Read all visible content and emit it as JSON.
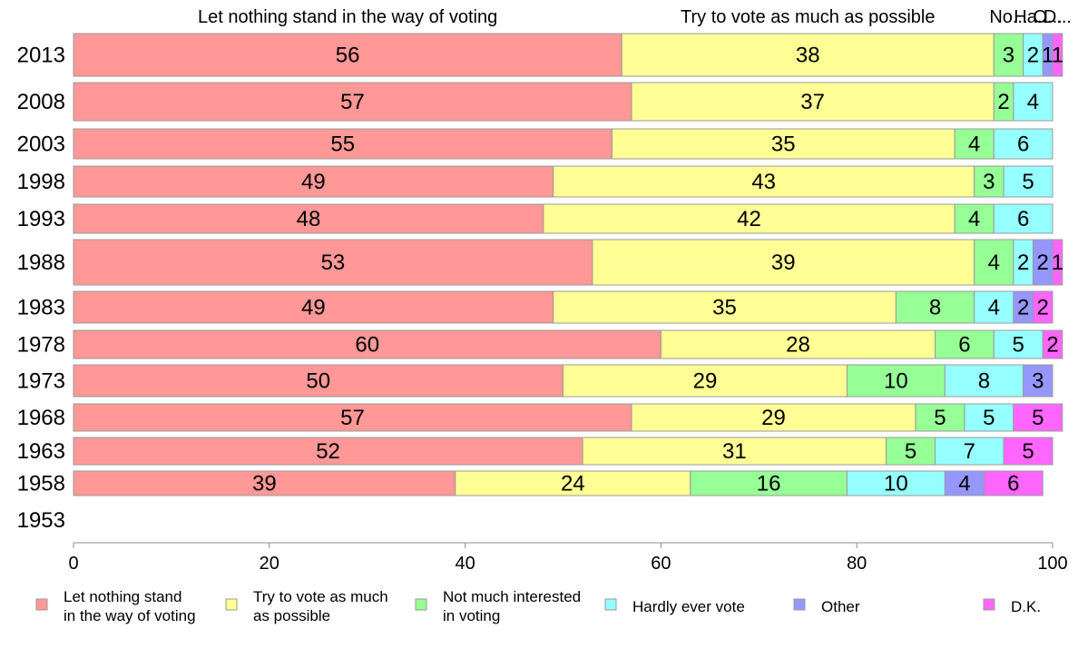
{
  "chart_data": {
    "type": "bar",
    "orientation": "horizontal",
    "stacked": true,
    "categories": [
      "2013",
      "2008",
      "2003",
      "1998",
      "1993",
      "1988",
      "1983",
      "1978",
      "1973",
      "1968",
      "1963",
      "1958",
      "1953"
    ],
    "series": [
      {
        "name": "Let nothing stand in the way of voting",
        "legend": [
          "Let nothing stand",
          "in the way of voting"
        ],
        "color": "#ff9896",
        "values": [
          56,
          57,
          55,
          49,
          48,
          53,
          49,
          60,
          50,
          57,
          52,
          39,
          null
        ]
      },
      {
        "name": "Try to vote as much as possible",
        "legend": [
          "Try to vote as much",
          "as possible"
        ],
        "color": "#ffff96",
        "values": [
          38,
          37,
          35,
          43,
          42,
          39,
          35,
          28,
          29,
          29,
          31,
          24,
          null
        ]
      },
      {
        "name": "Not much interested in voting",
        "legend": [
          "Not much interested",
          "in voting"
        ],
        "color": "#96ff96",
        "values": [
          3,
          2,
          4,
          3,
          4,
          4,
          8,
          6,
          10,
          5,
          5,
          16,
          null
        ]
      },
      {
        "name": "Hardly ever vote",
        "legend": [
          "Hardly ever vote"
        ],
        "color": "#96ffff",
        "values": [
          2,
          4,
          6,
          5,
          6,
          2,
          4,
          5,
          8,
          5,
          7,
          10,
          null
        ]
      },
      {
        "name": "Other",
        "legend": [
          "Other"
        ],
        "color": "#9696ff",
        "values": [
          1,
          0,
          0,
          0,
          0,
          2,
          2,
          0,
          3,
          0,
          0,
          4,
          null
        ]
      },
      {
        "name": "D.K.",
        "legend": [
          "D.K."
        ],
        "color": "#ff66ff",
        "values": [
          1,
          0,
          0,
          0,
          0,
          1,
          2,
          2,
          0,
          5,
          5,
          6,
          null
        ]
      }
    ],
    "top_labels": [
      "Let nothing stand in the way of voting",
      "Try to vote as much as possible",
      "No...",
      "Ha...",
      "O...",
      "D..."
    ],
    "xlim": [
      0,
      100
    ],
    "xticks": [
      0,
      20,
      40,
      60,
      80,
      100
    ],
    "xlabel": "",
    "ylabel": "",
    "title": "",
    "grid": false,
    "legend_position": "bottom"
  }
}
